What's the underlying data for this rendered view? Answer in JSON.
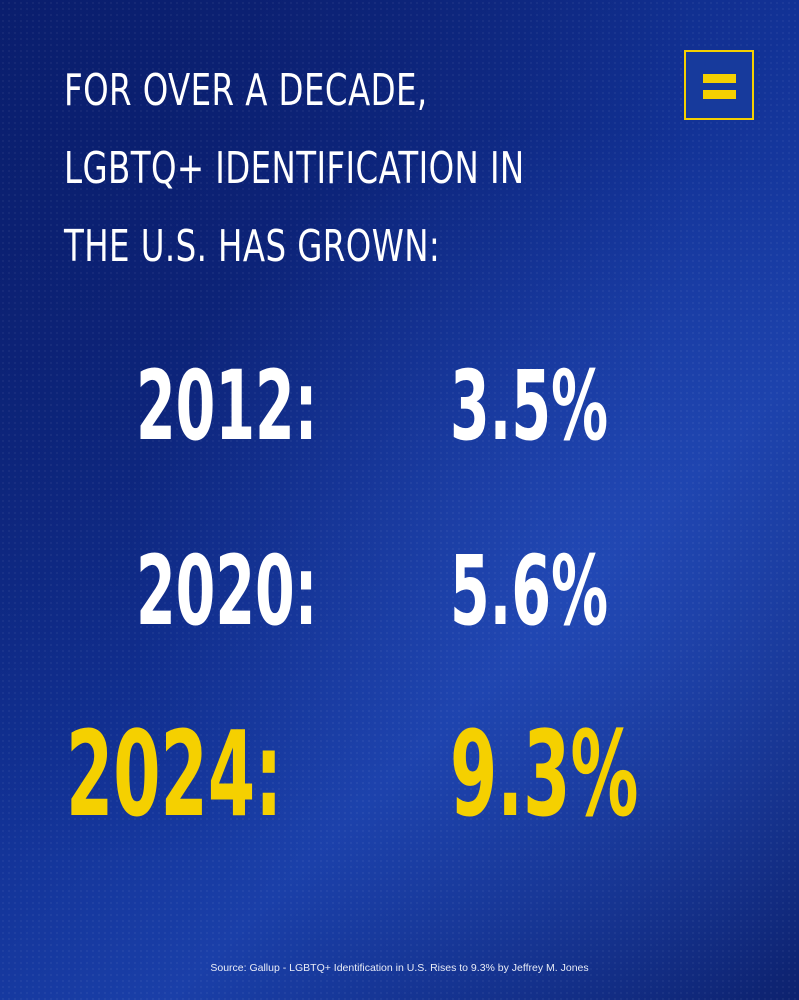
{
  "headline": {
    "lines": [
      "FOR OVER A DECADE,",
      "LGBTQ+ IDENTIFICATION IN",
      "THE U.S. HAS GROWN:"
    ]
  },
  "logo": {
    "icon": "equal-sign-logo-icon",
    "colors": {
      "background": "#173a9c",
      "accent": "#f5d000"
    }
  },
  "stats": [
    {
      "year": "2012:",
      "value": "3.5%",
      "color": "#ffffff"
    },
    {
      "year": "2020:",
      "value": "5.6%",
      "color": "#ffffff"
    },
    {
      "year": "2024:",
      "value": "9.3%",
      "color": "#f5d000"
    }
  ],
  "source": "Source: Gallup - LGBTQ+ Identification in U.S. Rises to 9.3% by Jeffrey M. Jones",
  "colors": {
    "background": "#123296",
    "text": "#ffffff",
    "highlight": "#f5d000"
  }
}
